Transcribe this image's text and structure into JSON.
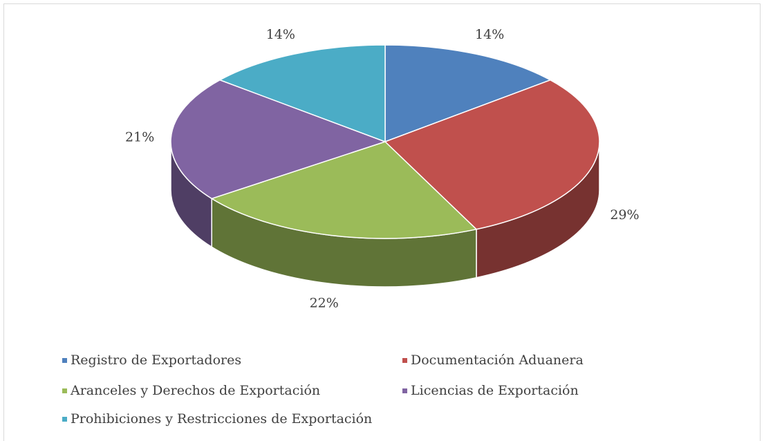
{
  "chart_data": {
    "type": "pie3d",
    "categories": [
      "Registro de Exportadores",
      "Documentación Aduanera",
      "Aranceles y Derechos de Exportación",
      "Licencias de Exportación",
      "Prohibiciones y Restricciones de Exportación"
    ],
    "values": [
      14,
      29,
      22,
      21,
      14
    ],
    "value_labels": [
      "14%",
      "29%",
      "22%",
      "21%",
      "14%"
    ],
    "colors": [
      "#4f81bd",
      "#c0504d",
      "#9bbb59",
      "#8064a2",
      "#4bacc6"
    ],
    "legend": "bottom"
  }
}
